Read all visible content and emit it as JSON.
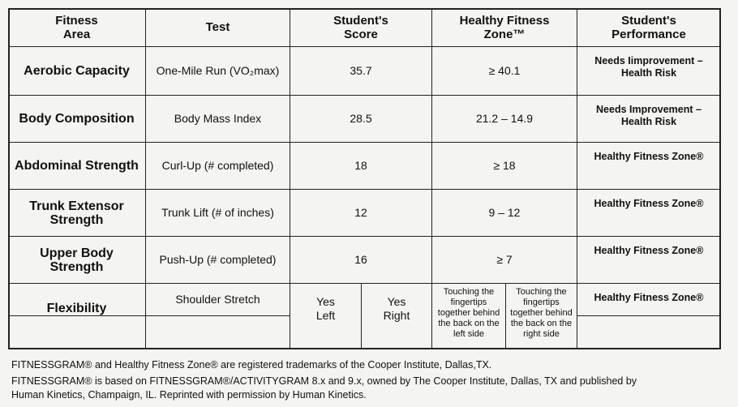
{
  "table": {
    "header": [
      "Fitness\nArea",
      "Test",
      "Student's\nScore",
      "Healthy Fitness\nZone™",
      "Student's\nPerformance"
    ],
    "rows": [
      [
        "Aerobic Capacity",
        "One-Mile Run (VO₂max)",
        "35.7",
        "≥ 40.1",
        "Needs Iimprovement –\nHealth Risk"
      ],
      [
        "Body Composition",
        "Body Mass Index",
        "28.5",
        "21.2 – 14.9",
        "Needs Improvement –\nHealth Risk"
      ],
      [
        "Abdominal Strength",
        "Curl-Up (# completed)",
        "18",
        "≥ 18",
        "Healthy Fitness Zone®"
      ],
      [
        "Trunk Extensor\nStrength",
        "Trunk Lift (# of inches)",
        "12",
        "9 – 12",
        "Healthy Fitness Zone®"
      ],
      [
        "Upper Body\nStrength",
        "Push-Up (# completed)",
        "16",
        "≥ 7",
        "Healthy Fitness Zone®"
      ]
    ],
    "flexibility": {
      "area": "Flexibility",
      "test": "Shoulder Stretch",
      "score": [
        "Yes\nLeft",
        "Yes\nRight"
      ],
      "zone": [
        "Touching the\nfingertips\ntogether behind\nthe back on the\nleft side",
        "Touching the\nfingertips\ntogether behind\nthe back on the\nright side"
      ],
      "performance": "Healthy Fitness Zone®"
    }
  },
  "footnotes": [
    "FITNESSGRAM® and Healthy Fitness Zone® are registered trademarks of the Cooper Institute, Dallas,TX.",
    "FITNESSGRAM® is based on FITNESSGRAM®/ACTIVITYGRAM 8.x and 9.x, owned by The Cooper Institute, Dallas, TX and published by\nHuman Kinetics, Champaign, IL.  Reprinted with permission by Human Kinetics."
  ]
}
